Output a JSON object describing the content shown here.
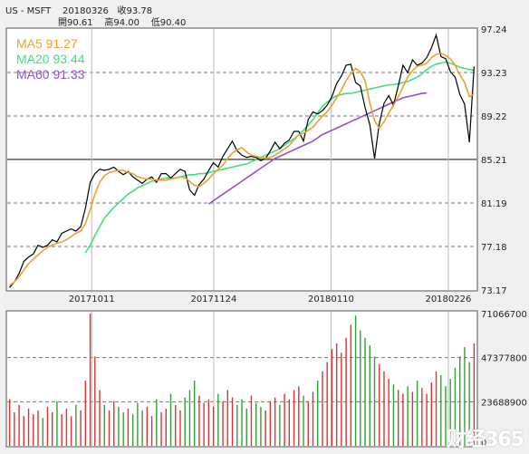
{
  "header": {
    "symbol": "US - MSFT",
    "date": "20180326",
    "close_label": "收93.78",
    "open_label": "開90.61",
    "high_label": "高94.00",
    "low_label": "低90.40"
  },
  "legend": [
    {
      "label": "MA5 91.27",
      "color": "#f0a030"
    },
    {
      "label": "MA20 93.44",
      "color": "#40e080"
    },
    {
      "label": "MA60 91.33",
      "color": "#9050d0"
    }
  ],
  "watermark": "财经365",
  "colors": {
    "price": "#000000",
    "ma5": "#f0a030",
    "ma20": "#40e080",
    "ma60": "#9050d0",
    "vol_up": "#e03030",
    "vol_down": "#30a030",
    "grid": "#aaaaaa",
    "frame": "#555555"
  },
  "chart_data": [
    {
      "type": "line",
      "ylim": [
        73.17,
        97.24
      ],
      "yticks": [
        "97.24",
        "93.23",
        "89.22",
        "85.21",
        "81.19",
        "77.18",
        "73.17"
      ],
      "xticks": [
        "20171011",
        "20171124",
        "20180110",
        "20180226"
      ],
      "series": [
        {
          "name": "MA5",
          "values": [
            73.6,
            73.9,
            74.4,
            75.0,
            75.6,
            76.0,
            76.4,
            76.8,
            77.1,
            77.3,
            77.5,
            77.6,
            77.8,
            78.1,
            78.4,
            78.6,
            79.3,
            80.6,
            82.0,
            83.1,
            83.7,
            84.0,
            84.1,
            84.2,
            84.2,
            84.0,
            83.9,
            83.6,
            83.5,
            83.4,
            83.4,
            83.3,
            83.3,
            83.3,
            83.4,
            83.5,
            83.6,
            83.5,
            83.2,
            82.8,
            82.7,
            83.0,
            83.4,
            83.9,
            84.3,
            84.7,
            85.3,
            85.8,
            86.1,
            86.3,
            85.9,
            85.6,
            85.5,
            85.4,
            85.3,
            85.4,
            85.6,
            85.9,
            86.2,
            86.5,
            87.0,
            87.5,
            87.6,
            87.9,
            88.2,
            88.7,
            89.2,
            89.6,
            90.2,
            90.9,
            91.6,
            92.5,
            93.1,
            93.6,
            93.3,
            92.5,
            90.4,
            88.8,
            88.1,
            88.7,
            89.5,
            90.2,
            91.0,
            91.9,
            92.8,
            93.4,
            93.8,
            93.9,
            94.1,
            94.6,
            94.9,
            95.0,
            94.8,
            94.5,
            93.9,
            93.0,
            92.3,
            91.0,
            91.27
          ]
        },
        {
          "name": "MA20",
          "values": [
            null,
            null,
            null,
            null,
            null,
            null,
            null,
            null,
            null,
            null,
            null,
            null,
            null,
            null,
            null,
            null,
            76.6,
            77.3,
            78.2,
            79.0,
            79.8,
            80.3,
            80.8,
            81.2,
            81.6,
            82.0,
            82.3,
            82.6,
            82.8,
            83.0,
            83.2,
            83.3,
            83.4,
            83.5,
            83.5,
            83.5,
            83.6,
            83.7,
            83.8,
            83.8,
            83.9,
            83.9,
            84.0,
            84.1,
            84.2,
            84.3,
            84.4,
            84.5,
            84.6,
            84.7,
            84.8,
            85.0,
            85.2,
            85.4,
            85.6,
            85.8,
            86.0,
            86.2,
            86.5,
            86.8,
            87.1,
            87.5,
            87.9,
            88.4,
            88.9,
            89.5,
            90.1,
            90.5,
            90.8,
            91.1,
            91.2,
            91.3,
            91.3,
            91.4,
            91.5,
            91.6,
            91.7,
            91.8,
            91.9,
            92.0,
            92.1,
            92.1,
            92.2,
            92.3,
            92.4,
            92.6,
            92.8,
            93.1,
            93.5,
            93.8,
            94.0,
            94.1,
            94.2,
            94.1,
            93.9,
            93.7,
            93.6,
            93.5,
            93.44
          ]
        },
        {
          "name": "MA60",
          "values": [
            null,
            null,
            null,
            null,
            null,
            null,
            null,
            null,
            null,
            null,
            null,
            null,
            null,
            null,
            null,
            null,
            null,
            null,
            null,
            null,
            null,
            null,
            null,
            null,
            null,
            null,
            null,
            null,
            null,
            null,
            null,
            null,
            null,
            null,
            null,
            null,
            null,
            null,
            null,
            null,
            null,
            null,
            81.1,
            81.4,
            81.7,
            82.0,
            82.3,
            82.6,
            82.9,
            83.2,
            83.5,
            83.8,
            84.1,
            84.4,
            84.7,
            85.0,
            85.3,
            85.5,
            85.7,
            85.9,
            86.1,
            86.3,
            86.5,
            86.7,
            86.9,
            87.2,
            87.5,
            87.7,
            87.9,
            88.1,
            88.3,
            88.5,
            88.7,
            88.9,
            89.1,
            89.3,
            89.5,
            89.7,
            89.9,
            90.1,
            90.3,
            90.5,
            90.7,
            90.9,
            91.0,
            91.1,
            91.2,
            91.3,
            91.33
          ]
        },
        {
          "name": "Price",
          "values": [
            73.4,
            73.9,
            74.7,
            75.8,
            76.2,
            76.5,
            77.3,
            77.1,
            77.3,
            77.8,
            77.6,
            78.4,
            78.6,
            78.8,
            78.6,
            79.0,
            80.7,
            83.1,
            83.9,
            84.3,
            84.2,
            84.3,
            84.5,
            84.1,
            83.8,
            84.1,
            83.6,
            83.3,
            83.0,
            83.4,
            83.6,
            83.1,
            83.9,
            83.9,
            83.5,
            83.9,
            84.3,
            84.1,
            82.4,
            81.9,
            82.9,
            83.4,
            84.2,
            84.9,
            84.5,
            85.5,
            86.2,
            86.9,
            86.0,
            85.6,
            85.4,
            85.5,
            85.4,
            85.1,
            85.3,
            86.0,
            86.8,
            86.2,
            86.7,
            87.0,
            87.8,
            87.8,
            86.9,
            88.9,
            89.6,
            89.4,
            89.7,
            90.2,
            91.0,
            92.2,
            92.9,
            93.9,
            94.0,
            92.3,
            92.0,
            90.0,
            88.4,
            85.3,
            88.5,
            90.4,
            91.1,
            90.2,
            92.0,
            93.9,
            93.2,
            94.4,
            93.9,
            94.1,
            94.6,
            95.5,
            96.7,
            94.7,
            94.5,
            93.3,
            92.8,
            91.2,
            90.3,
            86.8,
            93.78
          ]
        }
      ]
    },
    {
      "type": "bar",
      "ylim": [
        0,
        71066700
      ],
      "yticks": [
        "71066700",
        "47377800",
        "23688900",
        "0"
      ],
      "series": [
        {
          "name": "Volume",
          "values": [
            25000000,
            18000000,
            22000000,
            16000000,
            20000000,
            17000000,
            19000000,
            15000000,
            21000000,
            18000000,
            24000000,
            17000000,
            20000000,
            16000000,
            22000000,
            19000000,
            35000000,
            71000000,
            48000000,
            30000000,
            22000000,
            19000000,
            24000000,
            21000000,
            18000000,
            20000000,
            17000000,
            23000000,
            19000000,
            21000000,
            16000000,
            25000000,
            18000000,
            20000000,
            28000000,
            22000000,
            19000000,
            26000000,
            30000000,
            35000000,
            27000000,
            23000000,
            25000000,
            21000000,
            28000000,
            24000000,
            30000000,
            26000000,
            22000000,
            25000000,
            20000000,
            27000000,
            23000000,
            21000000,
            19000000,
            24000000,
            26000000,
            22000000,
            28000000,
            25000000,
            30000000,
            32000000,
            27000000,
            24000000,
            29000000,
            35000000,
            40000000,
            45000000,
            52000000,
            55000000,
            50000000,
            58000000,
            65000000,
            70000000,
            62000000,
            58000000,
            54000000,
            48000000,
            44000000,
            40000000,
            36000000,
            33000000,
            30000000,
            28000000,
            32000000,
            29000000,
            35000000,
            31000000,
            28000000,
            34000000,
            40000000,
            38000000,
            32000000,
            36000000,
            42000000,
            48000000,
            53000000,
            45000000,
            55000000
          ]
        }
      ]
    }
  ]
}
